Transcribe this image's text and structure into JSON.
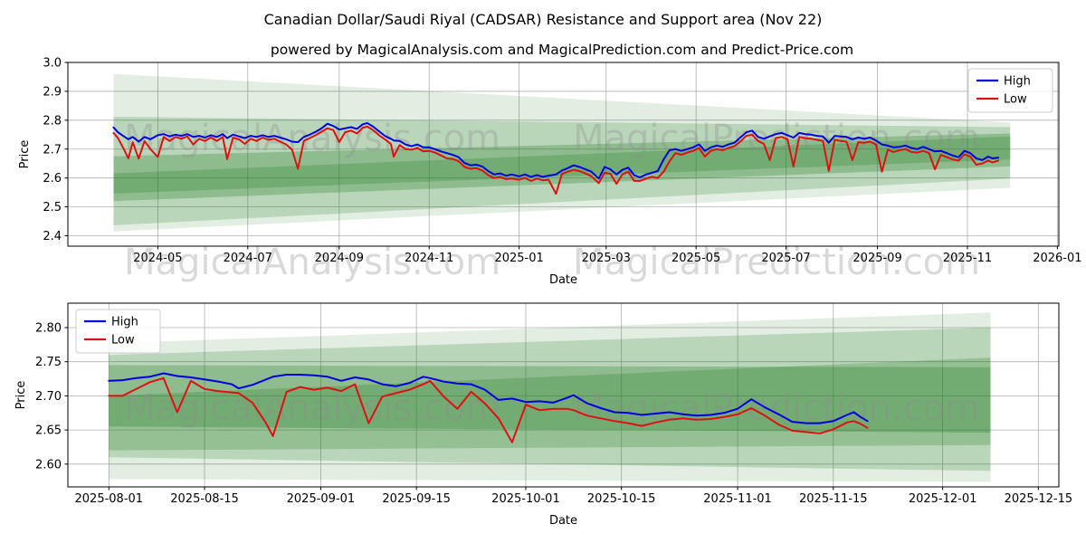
{
  "figure": {
    "title": "Canadian Dollar/Saudi Riyal (CADSAR) Resistance and Support area (Nov 22)",
    "subtitle": "powered by MagicalAnalysis.com and MagicalPrediction.com and Predict-Price.com"
  },
  "colors": {
    "high_line": "#0000dd",
    "low_line": "#dd1111",
    "band_green": "#1f7a1f",
    "grid": "#b0b0b0",
    "spine": "#000000",
    "watermark": "#8c8c8c",
    "legend_border": "#cccccc",
    "tick_text": "#000000"
  },
  "watermarks": {
    "left_text": "MagicalAnalysis.com",
    "right_text": "MagicalPrediction.com"
  },
  "chart_data": [
    {
      "type": "line",
      "name": "overview",
      "xlabel": "Date",
      "ylabel": "Price",
      "grid": true,
      "xlim": [
        "2024-03-01",
        "2026-01-02"
      ],
      "ylim": [
        2.364,
        3.0
      ],
      "yticks": [
        2.4,
        2.5,
        2.6,
        2.7,
        2.8,
        2.9,
        3.0
      ],
      "ytick_labels": [
        "2.4",
        "2.5",
        "2.6",
        "2.7",
        "2.8",
        "2.9",
        "3.0"
      ],
      "xticks": [
        "2024-05-01",
        "2024-07-01",
        "2024-09-01",
        "2024-11-01",
        "2025-01-01",
        "2025-03-01",
        "2025-05-01",
        "2025-07-01",
        "2025-09-01",
        "2025-11-01",
        "2026-01-01"
      ],
      "xtick_labels": [
        "2024-05",
        "2024-07",
        "2024-09",
        "2024-11",
        "2025-01",
        "2025-03",
        "2025-05",
        "2025-07",
        "2025-09",
        "2025-11",
        "2026-01"
      ],
      "legend": {
        "loc": "upper right",
        "entries": [
          {
            "label": "High"
          },
          {
            "label": "Low"
          }
        ]
      },
      "dates": [
        "2024-04-01",
        "2024-04-04",
        "2024-04-08",
        "2024-04-11",
        "2024-04-14",
        "2024-04-18",
        "2024-04-22",
        "2024-04-26",
        "2024-05-01",
        "2024-05-05",
        "2024-05-09",
        "2024-05-13",
        "2024-05-17",
        "2024-05-21",
        "2024-05-25",
        "2024-05-29",
        "2024-06-02",
        "2024-06-06",
        "2024-06-10",
        "2024-06-14",
        "2024-06-17",
        "2024-06-21",
        "2024-06-25",
        "2024-06-29",
        "2024-07-03",
        "2024-07-07",
        "2024-07-11",
        "2024-07-15",
        "2024-07-19",
        "2024-07-23",
        "2024-07-27",
        "2024-07-31",
        "2024-08-04",
        "2024-08-08",
        "2024-08-12",
        "2024-08-16",
        "2024-08-20",
        "2024-08-24",
        "2024-08-28",
        "2024-09-01",
        "2024-09-05",
        "2024-09-09",
        "2024-09-13",
        "2024-09-17",
        "2024-09-20",
        "2024-09-24",
        "2024-09-28",
        "2024-10-02",
        "2024-10-06",
        "2024-10-08",
        "2024-10-12",
        "2024-10-16",
        "2024-10-20",
        "2024-10-24",
        "2024-10-28",
        "2024-11-01",
        "2024-11-05",
        "2024-11-09",
        "2024-11-13",
        "2024-11-17",
        "2024-11-21",
        "2024-11-25",
        "2024-11-29",
        "2024-12-03",
        "2024-12-07",
        "2024-12-11",
        "2024-12-15",
        "2024-12-19",
        "2024-12-23",
        "2024-12-27",
        "2025-01-01",
        "2025-01-05",
        "2025-01-09",
        "2025-01-13",
        "2025-01-17",
        "2025-01-21",
        "2025-01-26",
        "2025-01-30",
        "2025-02-03",
        "2025-02-07",
        "2025-02-11",
        "2025-02-15",
        "2025-02-19",
        "2025-02-24",
        "2025-02-28",
        "2025-03-04",
        "2025-03-08",
        "2025-03-12",
        "2025-03-16",
        "2025-03-20",
        "2025-03-24",
        "2025-03-28",
        "2025-04-01",
        "2025-04-05",
        "2025-04-09",
        "2025-04-13",
        "2025-04-17",
        "2025-04-21",
        "2025-04-25",
        "2025-04-29",
        "2025-05-03",
        "2025-05-07",
        "2025-05-11",
        "2025-05-15",
        "2025-05-19",
        "2025-05-23",
        "2025-05-27",
        "2025-05-31",
        "2025-06-04",
        "2025-06-08",
        "2025-06-12",
        "2025-06-16",
        "2025-06-20",
        "2025-06-24",
        "2025-06-28",
        "2025-07-02",
        "2025-07-06",
        "2025-07-10",
        "2025-07-14",
        "2025-07-18",
        "2025-07-22",
        "2025-07-26",
        "2025-07-30",
        "2025-08-03",
        "2025-08-07",
        "2025-08-11",
        "2025-08-15",
        "2025-08-19",
        "2025-08-23",
        "2025-08-27",
        "2025-08-31",
        "2025-09-04",
        "2025-09-08",
        "2025-09-12",
        "2025-09-16",
        "2025-09-20",
        "2025-09-24",
        "2025-09-28",
        "2025-10-02",
        "2025-10-06",
        "2025-10-10",
        "2025-10-14",
        "2025-10-18",
        "2025-10-22",
        "2025-10-26",
        "2025-10-30",
        "2025-11-03",
        "2025-11-07",
        "2025-11-11",
        "2025-11-15",
        "2025-11-18",
        "2025-11-22"
      ],
      "series": [
        {
          "name": "High",
          "values": [
            2.775,
            2.758,
            2.744,
            2.734,
            2.742,
            2.726,
            2.742,
            2.734,
            2.748,
            2.752,
            2.744,
            2.75,
            2.746,
            2.752,
            2.742,
            2.746,
            2.74,
            2.748,
            2.742,
            2.752,
            2.738,
            2.75,
            2.744,
            2.738,
            2.746,
            2.742,
            2.748,
            2.742,
            2.746,
            2.74,
            2.734,
            2.726,
            2.724,
            2.742,
            2.75,
            2.76,
            2.772,
            2.788,
            2.78,
            2.768,
            2.772,
            2.776,
            2.77,
            2.786,
            2.79,
            2.778,
            2.762,
            2.746,
            2.736,
            2.73,
            2.728,
            2.716,
            2.71,
            2.716,
            2.706,
            2.706,
            2.7,
            2.692,
            2.686,
            2.68,
            2.672,
            2.652,
            2.644,
            2.646,
            2.64,
            2.624,
            2.612,
            2.616,
            2.608,
            2.612,
            2.606,
            2.612,
            2.604,
            2.61,
            2.604,
            2.608,
            2.612,
            2.626,
            2.634,
            2.644,
            2.638,
            2.63,
            2.622,
            2.598,
            2.638,
            2.63,
            2.612,
            2.628,
            2.636,
            2.61,
            2.602,
            2.612,
            2.618,
            2.624,
            2.664,
            2.696,
            2.7,
            2.694,
            2.7,
            2.706,
            2.716,
            2.694,
            2.706,
            2.712,
            2.708,
            2.716,
            2.722,
            2.74,
            2.758,
            2.764,
            2.742,
            2.736,
            2.744,
            2.752,
            2.756,
            2.748,
            2.74,
            2.756,
            2.752,
            2.75,
            2.746,
            2.744,
            2.722,
            2.746,
            2.744,
            2.742,
            2.734,
            2.74,
            2.736,
            2.74,
            2.73,
            2.716,
            2.712,
            2.706,
            2.708,
            2.712,
            2.704,
            2.7,
            2.708,
            2.7,
            2.692,
            2.694,
            2.686,
            2.678,
            2.672,
            2.694,
            2.686,
            2.668,
            2.662,
            2.674,
            2.668,
            2.67
          ]
        },
        {
          "name": "Low",
          "values": [
            2.756,
            2.738,
            2.7,
            2.668,
            2.724,
            2.667,
            2.728,
            2.7,
            2.673,
            2.742,
            2.728,
            2.742,
            2.736,
            2.744,
            2.716,
            2.736,
            2.728,
            2.74,
            2.728,
            2.742,
            2.665,
            2.74,
            2.734,
            2.718,
            2.736,
            2.728,
            2.74,
            2.732,
            2.736,
            2.726,
            2.716,
            2.698,
            2.632,
            2.728,
            2.738,
            2.748,
            2.76,
            2.772,
            2.766,
            2.724,
            2.758,
            2.764,
            2.754,
            2.774,
            2.778,
            2.766,
            2.748,
            2.734,
            2.718,
            2.674,
            2.714,
            2.7,
            2.698,
            2.704,
            2.692,
            2.694,
            2.688,
            2.678,
            2.668,
            2.666,
            2.658,
            2.638,
            2.632,
            2.634,
            2.626,
            2.61,
            2.6,
            2.604,
            2.596,
            2.598,
            2.594,
            2.6,
            2.59,
            2.598,
            2.592,
            2.594,
            2.545,
            2.614,
            2.622,
            2.628,
            2.624,
            2.616,
            2.606,
            2.582,
            2.618,
            2.614,
            2.58,
            2.612,
            2.622,
            2.59,
            2.59,
            2.598,
            2.604,
            2.6,
            2.622,
            2.658,
            2.686,
            2.68,
            2.688,
            2.694,
            2.704,
            2.674,
            2.694,
            2.7,
            2.696,
            2.704,
            2.71,
            2.726,
            2.746,
            2.75,
            2.728,
            2.718,
            2.662,
            2.738,
            2.742,
            2.734,
            2.64,
            2.742,
            2.738,
            2.736,
            2.732,
            2.728,
            2.624,
            2.732,
            2.728,
            2.726,
            2.662,
            2.724,
            2.722,
            2.726,
            2.716,
            2.622,
            2.698,
            2.69,
            2.696,
            2.7,
            2.69,
            2.688,
            2.694,
            2.686,
            2.63,
            2.68,
            2.672,
            2.664,
            2.66,
            2.682,
            2.674,
            2.646,
            2.65,
            2.66,
            2.654,
            2.66
          ]
        }
      ],
      "bands": [
        {
          "start": "2024-04-01",
          "end": "2025-11-30",
          "top": [
            2.96,
            2.792
          ],
          "bottom": [
            2.415,
            2.566
          ],
          "opacity": 0.13
        },
        {
          "start": "2024-04-01",
          "end": "2025-11-30",
          "top": [
            2.812,
            2.776
          ],
          "bottom": [
            2.436,
            2.598
          ],
          "opacity": 0.2
        },
        {
          "start": "2024-04-01",
          "end": "2025-11-30",
          "top": [
            2.616,
            2.744
          ],
          "bottom": [
            2.546,
            2.664
          ],
          "opacity": 0.24
        },
        {
          "start": "2024-04-01",
          "end": "2025-11-30",
          "top": [
            2.675,
            2.754
          ],
          "bottom": [
            2.52,
            2.64
          ],
          "opacity": 0.28
        }
      ]
    },
    {
      "type": "line",
      "name": "recent-detail",
      "xlabel": "Date",
      "ylabel": "Price",
      "grid": true,
      "xlim": [
        "2025-07-26",
        "2025-12-18"
      ],
      "ylim": [
        2.5666,
        2.8358
      ],
      "yticks": [
        2.6,
        2.65,
        2.7,
        2.75,
        2.8
      ],
      "ytick_labels": [
        "2.60",
        "2.65",
        "2.70",
        "2.75",
        "2.80"
      ],
      "xticks": [
        "2025-08-01",
        "2025-08-15",
        "2025-09-01",
        "2025-09-15",
        "2025-10-01",
        "2025-10-15",
        "2025-11-01",
        "2025-11-15",
        "2025-12-01",
        "2025-12-15"
      ],
      "xtick_labels": [
        "2025-08-01",
        "2025-08-15",
        "2025-09-01",
        "2025-09-15",
        "2025-10-01",
        "2025-10-15",
        "2025-11-01",
        "2025-11-15",
        "2025-12-01",
        "2025-12-15"
      ],
      "legend": {
        "loc": "upper left",
        "entries": [
          {
            "label": "High"
          },
          {
            "label": "Low"
          }
        ]
      },
      "dates": [
        "2025-08-01",
        "2025-08-03",
        "2025-08-05",
        "2025-08-07",
        "2025-08-09",
        "2025-08-11",
        "2025-08-13",
        "2025-08-15",
        "2025-08-17",
        "2025-08-19",
        "2025-08-20",
        "2025-08-22",
        "2025-08-24",
        "2025-08-25",
        "2025-08-27",
        "2025-08-29",
        "2025-08-31",
        "2025-09-02",
        "2025-09-04",
        "2025-09-06",
        "2025-09-08",
        "2025-09-10",
        "2025-09-12",
        "2025-09-14",
        "2025-09-16",
        "2025-09-17",
        "2025-09-19",
        "2025-09-21",
        "2025-09-23",
        "2025-09-25",
        "2025-09-27",
        "2025-09-29",
        "2025-10-01",
        "2025-10-03",
        "2025-10-05",
        "2025-10-07",
        "2025-10-08",
        "2025-10-10",
        "2025-10-12",
        "2025-10-14",
        "2025-10-16",
        "2025-10-18",
        "2025-10-20",
        "2025-10-22",
        "2025-10-24",
        "2025-10-26",
        "2025-10-28",
        "2025-10-30",
        "2025-11-01",
        "2025-11-03",
        "2025-11-05",
        "2025-11-07",
        "2025-11-09",
        "2025-11-11",
        "2025-11-13",
        "2025-11-15",
        "2025-11-17",
        "2025-11-18",
        "2025-11-19",
        "2025-11-20"
      ],
      "series": [
        {
          "name": "High",
          "values": [
            2.722,
            2.723,
            2.726,
            2.728,
            2.733,
            2.729,
            2.727,
            2.724,
            2.721,
            2.717,
            2.711,
            2.716,
            2.724,
            2.728,
            2.731,
            2.731,
            2.73,
            2.728,
            2.722,
            2.727,
            2.724,
            2.717,
            2.714,
            2.719,
            2.728,
            2.726,
            2.721,
            2.718,
            2.717,
            2.709,
            2.694,
            2.696,
            2.691,
            2.692,
            2.69,
            2.697,
            2.701,
            2.689,
            2.682,
            2.676,
            2.675,
            2.672,
            2.674,
            2.676,
            2.673,
            2.671,
            2.672,
            2.675,
            2.681,
            2.695,
            2.683,
            2.673,
            2.662,
            2.66,
            2.66,
            2.663,
            2.672,
            2.676,
            2.669,
            2.663
          ]
        },
        {
          "name": "Low",
          "values": [
            2.7,
            2.7,
            2.71,
            2.72,
            2.726,
            2.676,
            2.722,
            2.71,
            2.707,
            2.705,
            2.704,
            2.69,
            2.66,
            2.641,
            2.706,
            2.713,
            2.709,
            2.712,
            2.707,
            2.717,
            2.66,
            2.699,
            2.704,
            2.709,
            2.717,
            2.722,
            2.699,
            2.681,
            2.706,
            2.689,
            2.667,
            2.632,
            2.687,
            2.679,
            2.681,
            2.681,
            2.679,
            2.671,
            2.667,
            2.663,
            2.66,
            2.656,
            2.661,
            2.665,
            2.667,
            2.665,
            2.666,
            2.669,
            2.673,
            2.682,
            2.671,
            2.658,
            2.649,
            2.647,
            2.645,
            2.651,
            2.661,
            2.663,
            2.659,
            2.653
          ]
        }
      ],
      "bands": [
        {
          "start": "2025-08-01",
          "end": "2025-12-08",
          "top": [
            2.777,
            2.822
          ],
          "bottom": [
            2.578,
            2.574
          ],
          "opacity": 0.13
        },
        {
          "start": "2025-08-01",
          "end": "2025-12-08",
          "top": [
            2.76,
            2.8
          ],
          "bottom": [
            2.61,
            2.59
          ],
          "opacity": 0.2
        },
        {
          "start": "2025-08-01",
          "end": "2025-12-08",
          "top": [
            2.7,
            2.756
          ],
          "bottom": [
            2.62,
            2.628
          ],
          "opacity": 0.24
        },
        {
          "start": "2025-08-01",
          "end": "2025-12-08",
          "top": [
            2.745,
            2.742
          ],
          "bottom": [
            2.655,
            2.646
          ],
          "opacity": 0.28
        }
      ]
    }
  ]
}
